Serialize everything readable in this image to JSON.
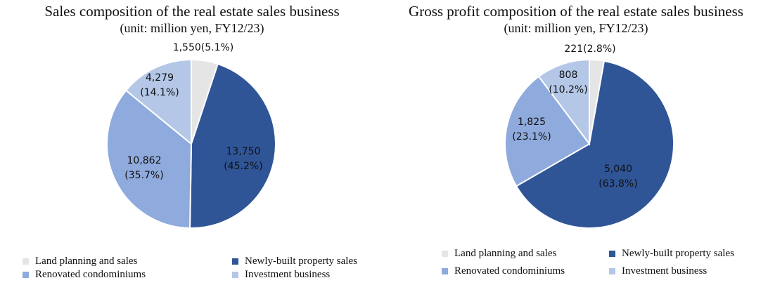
{
  "colors": {
    "Land planning and sales": "#e5e5e5",
    "Newly-built property sales": "#2f5597",
    "Renovated condominiums": "#8faadc",
    "Investment business": "#b4c7e7"
  },
  "chart_data": [
    {
      "type": "pie",
      "title": "Sales composition of the real estate sales business",
      "subtitle": "(unit: million yen, FY12/23)",
      "slices": [
        {
          "name": "Land planning and sales",
          "value": 1550,
          "label_line1": "1,550(5.1%)",
          "label_line2": ""
        },
        {
          "name": "Newly-built property sales",
          "value": 13750,
          "label_line1": "13,750",
          "label_line2": "(45.2%)"
        },
        {
          "name": "Renovated condominiums",
          "value": 10862,
          "label_line1": "10,862",
          "label_line2": "(35.7%)"
        },
        {
          "name": "Investment business",
          "value": 4279,
          "label_line1": "4,279",
          "label_line2": "(14.1%)"
        }
      ],
      "legend": [
        "Land planning and sales",
        "Newly-built property sales",
        "Renovated condominiums",
        "Investment business"
      ]
    },
    {
      "type": "pie",
      "title": "Gross profit composition of the real estate sales business",
      "subtitle": "(unit: million yen, FY12/23)",
      "slices": [
        {
          "name": "Land planning and sales",
          "value": 221,
          "label_line1": "221(2.8%)",
          "label_line2": ""
        },
        {
          "name": "Newly-built property sales",
          "value": 5040,
          "label_line1": "5,040",
          "label_line2": "(63.8%)"
        },
        {
          "name": "Renovated condominiums",
          "value": 1825,
          "label_line1": "1,825",
          "label_line2": "(23.1%)"
        },
        {
          "name": "Investment business",
          "value": 808,
          "label_line1": "808",
          "label_line2": "(10.2%)"
        }
      ],
      "legend": [
        "Land planning and sales",
        "Newly-built property sales",
        "Renovated condominiums",
        "Investment business"
      ]
    }
  ]
}
